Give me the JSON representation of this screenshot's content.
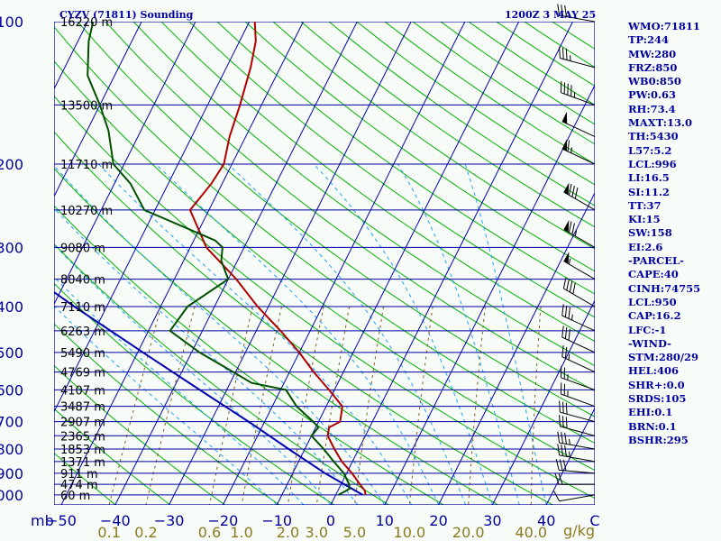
{
  "header": {
    "station": "CYZV (71811) Sounding",
    "time": "1200Z  3 MAY 25"
  },
  "colors": {
    "isobar": "#0000a0",
    "isotherm": "#0000b0",
    "dry_adiabat": "#00b000",
    "moist_adiabat": "#20a0ff",
    "mixing_ratio": "#806020",
    "temperature": "#b00000",
    "dewpoint": "#005000",
    "parcel": "#0000b0",
    "wind_barb": "#000000",
    "text": "#0000a0"
  },
  "chart_data": {
    "type": "skew-t",
    "pressure_unit": "mb",
    "temp_unit": "C",
    "mixing_ratio_unit": "g/kg",
    "pressure_ticks": [
      "100",
      "200",
      "300",
      "400",
      "500",
      "600",
      "700",
      "800",
      "900",
      "1000"
    ],
    "temperature_ticks": [
      "−50",
      "−40",
      "−30",
      "−20",
      "−10",
      "0",
      "10",
      "20",
      "30",
      "40"
    ],
    "mixing_ratio_labels": [
      "0.1",
      "0.2",
      "0.6",
      "1.0",
      "2.0",
      "3.0",
      "5.0",
      "10.0",
      "20.0",
      "40.0"
    ],
    "height_labels": [
      {
        "p": 100,
        "label": "16220 m"
      },
      {
        "p": 150,
        "label": "13500 m"
      },
      {
        "p": 200,
        "label": "11710 m"
      },
      {
        "p": 250,
        "label": "10270 m"
      },
      {
        "p": 300,
        "label": "9080 m"
      },
      {
        "p": 350,
        "label": "8040 m"
      },
      {
        "p": 400,
        "label": "7110 m"
      },
      {
        "p": 450,
        "label": "6263 m"
      },
      {
        "p": 500,
        "label": "5490 m"
      },
      {
        "p": 550,
        "label": "4769 m"
      },
      {
        "p": 600,
        "label": "4107 m"
      },
      {
        "p": 650,
        "label": "3487 m"
      },
      {
        "p": 700,
        "label": "2907 m"
      },
      {
        "p": 750,
        "label": "2365 m"
      },
      {
        "p": 800,
        "label": "1853 m"
      },
      {
        "p": 850,
        "label": "1371 m"
      },
      {
        "p": 900,
        "label": "911 m"
      },
      {
        "p": 950,
        "label": "474 m"
      },
      {
        "p": 1000,
        "label": "60 m"
      }
    ],
    "temperature_profile": [
      {
        "p": 1000,
        "t": 5.5
      },
      {
        "p": 980,
        "t": 5.0
      },
      {
        "p": 950,
        "t": 3.5
      },
      {
        "p": 900,
        "t": 1.0
      },
      {
        "p": 850,
        "t": -2.0
      },
      {
        "p": 800,
        "t": -4.5
      },
      {
        "p": 750,
        "t": -7.0
      },
      {
        "p": 720,
        "t": -7.5
      },
      {
        "p": 700,
        "t": -6.0
      },
      {
        "p": 650,
        "t": -7.0
      },
      {
        "p": 600,
        "t": -11.0
      },
      {
        "p": 550,
        "t": -15.5
      },
      {
        "p": 500,
        "t": -20.0
      },
      {
        "p": 450,
        "t": -25.5
      },
      {
        "p": 400,
        "t": -32.0
      },
      {
        "p": 350,
        "t": -38.5
      },
      {
        "p": 300,
        "t": -47.0
      },
      {
        "p": 250,
        "t": -53.5
      },
      {
        "p": 220,
        "t": -52.0
      },
      {
        "p": 200,
        "t": -51.5
      },
      {
        "p": 175,
        "t": -53.0
      },
      {
        "p": 150,
        "t": -54.0
      },
      {
        "p": 125,
        "t": -55.5
      },
      {
        "p": 110,
        "t": -57.0
      },
      {
        "p": 100,
        "t": -59.0
      }
    ],
    "dewpoint_profile": [
      {
        "p": 1000,
        "td": 0.5
      },
      {
        "p": 970,
        "td": 2.0
      },
      {
        "p": 950,
        "td": 1.5
      },
      {
        "p": 900,
        "td": -0.5
      },
      {
        "p": 850,
        "td": -3.5
      },
      {
        "p": 800,
        "td": -6.5
      },
      {
        "p": 750,
        "td": -10.0
      },
      {
        "p": 720,
        "td": -9.5
      },
      {
        "p": 700,
        "td": -11.0
      },
      {
        "p": 650,
        "td": -15.5
      },
      {
        "p": 600,
        "td": -19.0
      },
      {
        "p": 580,
        "td": -26.0
      },
      {
        "p": 540,
        "td": -32.0
      },
      {
        "p": 500,
        "td": -38.5
      },
      {
        "p": 450,
        "td": -46.0
      },
      {
        "p": 400,
        "td": -45.0
      },
      {
        "p": 350,
        "td": -40.0
      },
      {
        "p": 320,
        "td": -43.0
      },
      {
        "p": 300,
        "td": -44.0
      },
      {
        "p": 290,
        "td": -46.0
      },
      {
        "p": 250,
        "td": -62.0
      },
      {
        "p": 220,
        "td": -67.0
      },
      {
        "p": 200,
        "td": -72.0
      },
      {
        "p": 170,
        "td": -76.0
      },
      {
        "p": 150,
        "td": -80.0
      },
      {
        "p": 130,
        "td": -85.0
      },
      {
        "p": 110,
        "td": -88.0
      },
      {
        "p": 100,
        "td": -89.0
      }
    ],
    "parcel_profile": [
      {
        "p": 1000,
        "t": 5.0
      },
      {
        "p": 900,
        "t": -4.0
      },
      {
        "p": 800,
        "t": -13.0
      },
      {
        "p": 700,
        "t": -23.0
      },
      {
        "p": 600,
        "t": -35.0
      },
      {
        "p": 500,
        "t": -49.0
      },
      {
        "p": 400,
        "t": -66.0
      },
      {
        "p": 300,
        "t": -87.0
      },
      {
        "p": 250,
        "t": -99.0
      },
      {
        "p": 200,
        "t": -114.0
      },
      {
        "p": 150,
        "t": -132.0
      },
      {
        "p": 100,
        "t": -159.0
      }
    ],
    "winds": [
      {
        "p": 1000,
        "dir": 260,
        "spd": 10
      },
      {
        "p": 950,
        "dir": 270,
        "spd": 20
      },
      {
        "p": 900,
        "dir": 275,
        "spd": 30
      },
      {
        "p": 850,
        "dir": 280,
        "spd": 35
      },
      {
        "p": 800,
        "dir": 280,
        "spd": 35
      },
      {
        "p": 750,
        "dir": 285,
        "spd": 30
      },
      {
        "p": 700,
        "dir": 285,
        "spd": 30
      },
      {
        "p": 650,
        "dir": 290,
        "spd": 25
      },
      {
        "p": 600,
        "dir": 290,
        "spd": 25
      },
      {
        "p": 550,
        "dir": 295,
        "spd": 25
      },
      {
        "p": 500,
        "dir": 295,
        "spd": 30
      },
      {
        "p": 450,
        "dir": 295,
        "spd": 35
      },
      {
        "p": 400,
        "dir": 300,
        "spd": 40
      },
      {
        "p": 350,
        "dir": 300,
        "spd": 55
      },
      {
        "p": 300,
        "dir": 300,
        "spd": 75
      },
      {
        "p": 250,
        "dir": 300,
        "spd": 80
      },
      {
        "p": 200,
        "dir": 295,
        "spd": 65
      },
      {
        "p": 175,
        "dir": 295,
        "spd": 50
      },
      {
        "p": 150,
        "dir": 290,
        "spd": 45
      },
      {
        "p": 125,
        "dir": 285,
        "spd": 35
      },
      {
        "p": 100,
        "dir": 280,
        "spd": 30
      }
    ],
    "grid": true
  },
  "indices": [
    "WMO:71811",
    "TP:244",
    "MW:280",
    "FRZ:850",
    "WB0:850",
    "PW:0.63",
    "RH:73.4",
    "MAXT:13.0",
    "TH:5430",
    "L57:5.2",
    "LCL:996",
    "LI:16.5",
    "SI:11.2",
    "TT:37",
    "KI:15",
    "SW:158",
    "EI:2.6",
    "-PARCEL-",
    "CAPE:40",
    "CINH:74755",
    "LCL:950",
    "CAP:16.2",
    "LFC:-1",
    "-WIND-",
    "STM:280/29",
    "HEL:406",
    "SHR+:0.0",
    "SRDS:105",
    "EHI:0.1",
    "BRN:0.1",
    "BSHR:295"
  ]
}
